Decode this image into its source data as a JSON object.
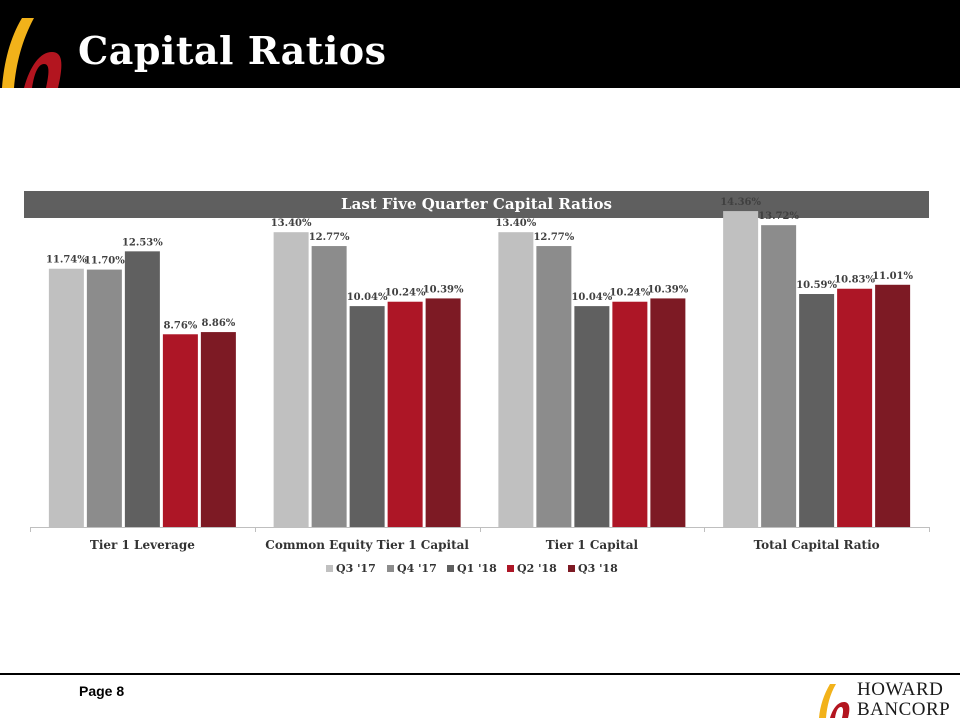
{
  "page": {
    "title": "Capital Ratios",
    "page_label": "Page 8",
    "brand": {
      "line1": "HOWARD",
      "line2": "BANCORP"
    }
  },
  "colors": {
    "header_bg": "#000000",
    "banner_bg": "#5f5f5f",
    "logo_gold": "#f2b21a",
    "logo_red": "#b3151f"
  },
  "chart_data": {
    "type": "bar",
    "title": "Last  Five Quarter Capital Ratios",
    "xlabel": "",
    "ylabel": "",
    "ylim": [
      0,
      16
    ],
    "grid": false,
    "legend_position": "bottom",
    "categories": [
      "Tier 1 Leverage",
      "Common Equity Tier 1 Capital",
      "Tier 1 Capital",
      "Total Capital Ratio"
    ],
    "series": [
      {
        "name": "Q3 '17",
        "color": "#c0c0c0",
        "values": [
          11.74,
          13.4,
          13.4,
          14.36
        ],
        "labels": [
          "11.74%",
          "13.40%",
          "13.40%",
          "14.36%"
        ]
      },
      {
        "name": "Q4 '17",
        "color": "#8c8c8c",
        "values": [
          11.7,
          12.77,
          12.77,
          13.72
        ],
        "labels": [
          "11.70%",
          "12.77%",
          "12.77%",
          "13.72%"
        ]
      },
      {
        "name": "Q1 '18",
        "color": "#606060",
        "values": [
          12.53,
          10.04,
          10.04,
          10.59
        ],
        "labels": [
          "12.53%",
          "10.04%",
          "10.04%",
          "10.59%"
        ]
      },
      {
        "name": "Q2 '18",
        "color": "#ad1626",
        "values": [
          8.76,
          10.24,
          10.24,
          10.83
        ],
        "labels": [
          "8.76%",
          "10.24%",
          "10.24%",
          "10.83%"
        ]
      },
      {
        "name": "Q3 '18",
        "color": "#7d1a24",
        "values": [
          8.86,
          10.39,
          10.39,
          11.01
        ],
        "labels": [
          "8.86%",
          "10.39%",
          "10.39%",
          "11.01%"
        ]
      }
    ]
  }
}
